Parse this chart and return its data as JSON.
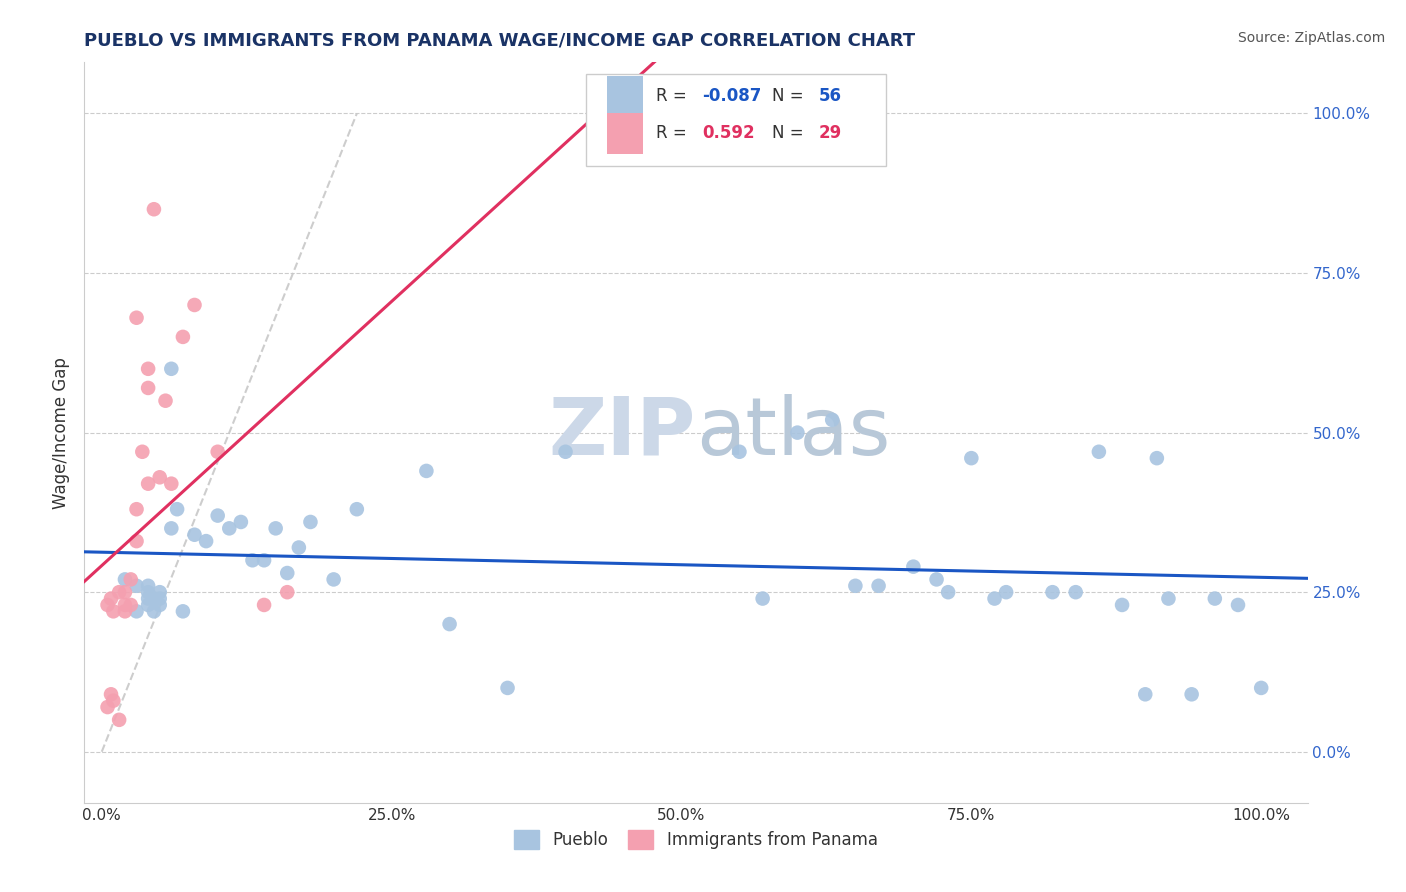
{
  "title": "PUEBLO VS IMMIGRANTS FROM PANAMA WAGE/INCOME GAP CORRELATION CHART",
  "source": "Source: ZipAtlas.com",
  "ylabel": "Wage/Income Gap",
  "right_ytick_labels": [
    "0.0%",
    "25.0%",
    "50.0%",
    "75.0%",
    "100.0%"
  ],
  "right_ytick_values": [
    0.0,
    0.25,
    0.5,
    0.75,
    1.0
  ],
  "xtick_labels": [
    "0.0%",
    "25.0%",
    "50.0%",
    "75.0%",
    "100.0%"
  ],
  "xtick_values": [
    0.0,
    0.25,
    0.5,
    0.75,
    1.0
  ],
  "xlim": [
    -0.015,
    1.04
  ],
  "ylim": [
    -0.08,
    1.08
  ],
  "R_blue": -0.087,
  "N_blue": 56,
  "R_pink": 0.592,
  "N_pink": 29,
  "blue_color": "#a8c4e0",
  "pink_color": "#f4a0b0",
  "trend_blue_color": "#1a56c4",
  "trend_pink_color": "#e03060",
  "trend_dashed_color": "#c8c8c8",
  "watermark_color": "#ccd8e8",
  "legend_label_blue": "Pueblo",
  "legend_label_pink": "Immigrants from Panama",
  "blue_scatter_x": [
    0.02,
    0.03,
    0.03,
    0.04,
    0.04,
    0.04,
    0.04,
    0.045,
    0.045,
    0.05,
    0.05,
    0.05,
    0.06,
    0.06,
    0.065,
    0.07,
    0.08,
    0.09,
    0.1,
    0.11,
    0.12,
    0.13,
    0.14,
    0.15,
    0.16,
    0.17,
    0.18,
    0.2,
    0.22,
    0.28,
    0.3,
    0.35,
    0.4,
    0.55,
    0.57,
    0.6,
    0.63,
    0.65,
    0.67,
    0.7,
    0.72,
    0.73,
    0.75,
    0.77,
    0.78,
    0.82,
    0.84,
    0.86,
    0.88,
    0.9,
    0.91,
    0.92,
    0.94,
    0.96,
    0.98,
    1.0
  ],
  "blue_scatter_y": [
    0.27,
    0.22,
    0.26,
    0.25,
    0.23,
    0.24,
    0.26,
    0.22,
    0.24,
    0.25,
    0.23,
    0.24,
    0.6,
    0.35,
    0.38,
    0.22,
    0.34,
    0.33,
    0.37,
    0.35,
    0.36,
    0.3,
    0.3,
    0.35,
    0.28,
    0.32,
    0.36,
    0.27,
    0.38,
    0.44,
    0.2,
    0.1,
    0.47,
    0.47,
    0.24,
    0.5,
    0.52,
    0.26,
    0.26,
    0.29,
    0.27,
    0.25,
    0.46,
    0.24,
    0.25,
    0.25,
    0.25,
    0.47,
    0.23,
    0.09,
    0.46,
    0.24,
    0.09,
    0.24,
    0.23,
    0.1
  ],
  "pink_scatter_x": [
    0.005,
    0.005,
    0.008,
    0.008,
    0.01,
    0.01,
    0.015,
    0.015,
    0.02,
    0.02,
    0.02,
    0.025,
    0.025,
    0.03,
    0.03,
    0.03,
    0.035,
    0.04,
    0.04,
    0.04,
    0.045,
    0.05,
    0.055,
    0.06,
    0.07,
    0.08,
    0.1,
    0.14,
    0.16
  ],
  "pink_scatter_y": [
    0.23,
    0.07,
    0.24,
    0.09,
    0.22,
    0.08,
    0.25,
    0.05,
    0.25,
    0.23,
    0.22,
    0.27,
    0.23,
    0.33,
    0.68,
    0.38,
    0.47,
    0.57,
    0.42,
    0.6,
    0.85,
    0.43,
    0.55,
    0.42,
    0.65,
    0.7,
    0.47,
    0.23,
    0.25
  ]
}
